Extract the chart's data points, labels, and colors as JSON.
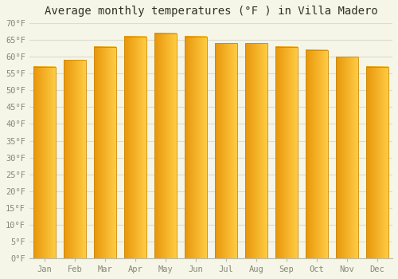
{
  "title": "Average monthly temperatures (°F ) in Villa Madero",
  "months": [
    "Jan",
    "Feb",
    "Mar",
    "Apr",
    "May",
    "Jun",
    "Jul",
    "Aug",
    "Sep",
    "Oct",
    "Nov",
    "Dec"
  ],
  "values": [
    57,
    59,
    63,
    66,
    67,
    66,
    64,
    64,
    63,
    62,
    60,
    57
  ],
  "bar_color_left": "#E8960A",
  "bar_color_right": "#FFCC44",
  "bar_edge_color": "#CC8800",
  "ylim": [
    0,
    70
  ],
  "yticks": [
    0,
    5,
    10,
    15,
    20,
    25,
    30,
    35,
    40,
    45,
    50,
    55,
    60,
    65,
    70
  ],
  "ytick_labels": [
    "0°F",
    "5°F",
    "10°F",
    "15°F",
    "20°F",
    "25°F",
    "30°F",
    "35°F",
    "40°F",
    "45°F",
    "50°F",
    "55°F",
    "60°F",
    "65°F",
    "70°F"
  ],
  "background_color": "#F5F5E8",
  "grid_color": "#DDDDCC",
  "title_fontsize": 10,
  "tick_fontsize": 7.5,
  "font_family": "monospace"
}
